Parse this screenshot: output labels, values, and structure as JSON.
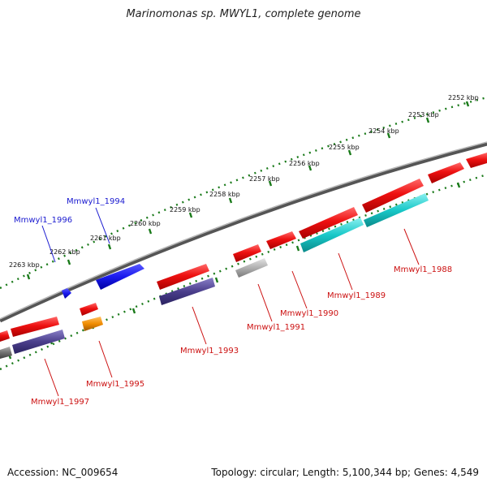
{
  "title": "Marinomonas sp. MWYL1, complete genome",
  "accession": "Accession: NC_009654",
  "summary": "Topology: circular; Length: 5,100,344 bp; Genes: 4,549",
  "colors": {
    "backbone": "#7a7a7a",
    "ruler": "#1a7a1a",
    "forward_gene": "#ee1111",
    "reverse_gene": "#ee1111",
    "rna": "#1a1aee",
    "pseudo": "#b0b0b0",
    "misc": "#f08c00",
    "purple_feature": "#4b3f8c",
    "cyan_feature": "#18c8c8",
    "label_blue": "#1a1ad0",
    "label_red": "#cc1111"
  },
  "ruler_ticks": [
    {
      "label": "2252 kbp"
    },
    {
      "label": "2253 kbp"
    },
    {
      "label": "2254 kbp"
    },
    {
      "label": "2255 kbp"
    },
    {
      "label": "2256 kbp"
    },
    {
      "label": "2257 kbp"
    },
    {
      "label": "2258 kbp"
    },
    {
      "label": "2259 kbp"
    },
    {
      "label": "2260 kbp"
    },
    {
      "label": "2261 kbp"
    },
    {
      "label": "2262 kbp"
    },
    {
      "label": "2263 kbp"
    }
  ],
  "gene_labels": [
    {
      "text": "Mmwyl1_1994",
      "color": "label_blue"
    },
    {
      "text": "Mmwyl1_1996",
      "color": "label_blue"
    },
    {
      "text": "Mmwyl1_1988",
      "color": "label_red"
    },
    {
      "text": "Mmwyl1_1989",
      "color": "label_red"
    },
    {
      "text": "Mmwyl1_1990",
      "color": "label_red"
    },
    {
      "text": "Mmwyl1_1991",
      "color": "label_red"
    },
    {
      "text": "Mmwyl1_1993",
      "color": "label_red"
    },
    {
      "text": "Mmwyl1_1995",
      "color": "label_red"
    },
    {
      "text": "Mmwyl1_1997",
      "color": "label_red"
    }
  ]
}
